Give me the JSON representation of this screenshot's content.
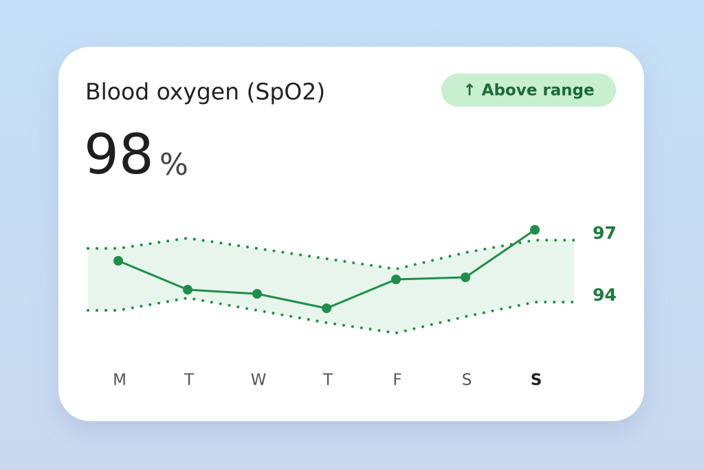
{
  "card": {
    "title": "Blood oxygen (SpO2)",
    "value": "98",
    "unit": "%",
    "badge": "↑ Above range"
  },
  "chart_data": {
    "type": "line",
    "categories": [
      "M",
      "T",
      "W",
      "T",
      "F",
      "S",
      "S"
    ],
    "series": [
      {
        "color": "#1e8e4a",
        "values": [
          95.7,
          94.3,
          94.1,
          93.4,
          94.8,
          94.9,
          97.2
        ]
      }
    ],
    "range_band": {
      "color": "#1e8e4a",
      "fill": "#e8f5ec",
      "upper": [
        96.3,
        96.8,
        96.3,
        95.8,
        95.3,
        96.1,
        96.7
      ],
      "lower": [
        93.3,
        93.9,
        93.3,
        92.7,
        92.2,
        93.0,
        93.7
      ]
    },
    "ylim": [
      92,
      98
    ],
    "yticks": [
      94,
      97
    ]
  }
}
